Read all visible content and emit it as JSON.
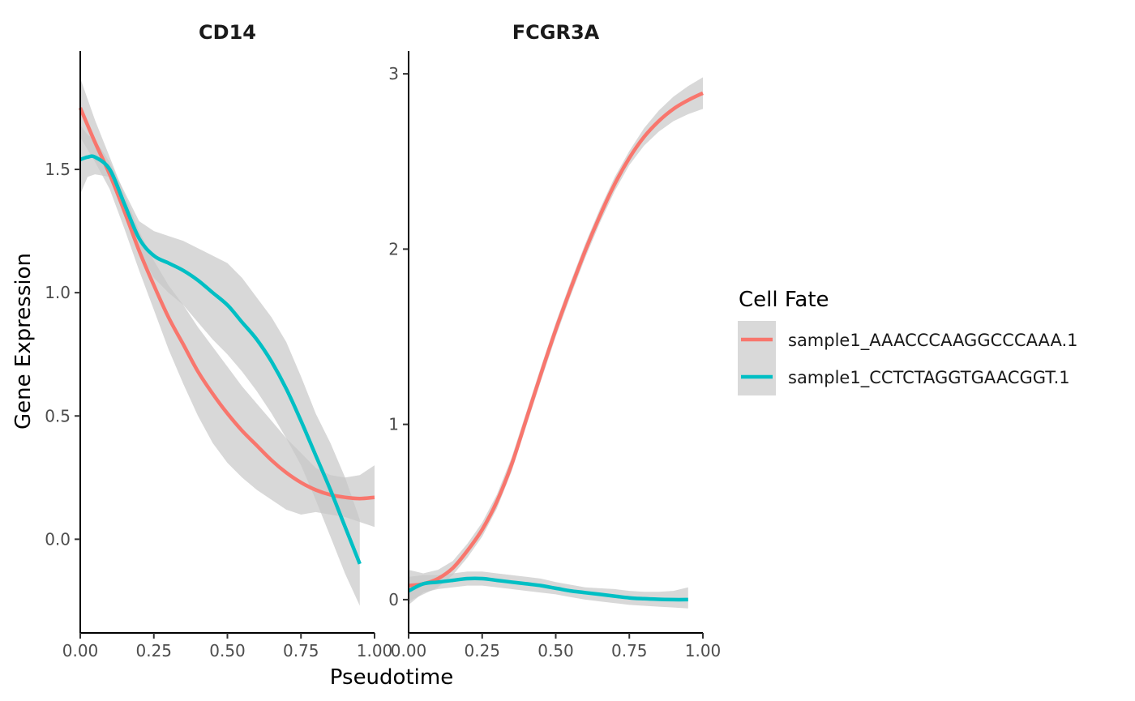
{
  "colors": {
    "series1": "#F8766D",
    "series2": "#00BFC4",
    "ribbon": "#c8c8c8",
    "axis": "#000000"
  },
  "chart_data": {
    "type": "line",
    "x_label": "Pseudotime",
    "y_label": "Gene Expression",
    "legend": {
      "title": "Cell Fate",
      "position": "right",
      "entries": [
        "sample1_AAACCCAAGGCCCAAA.1",
        "sample1_CCTCTAGGTGAACGGT.1"
      ]
    },
    "grid": false,
    "panels": [
      {
        "title": "CD14",
        "xlim": [
          0,
          1
        ],
        "ylim": [
          -0.38,
          1.98
        ],
        "x_ticks": [
          0,
          0.25,
          0.5,
          0.75,
          1
        ],
        "x_tick_labels": [
          "0.00",
          "0.25",
          "0.50",
          "0.75",
          "1.00"
        ],
        "y_ticks": [
          0,
          0.5,
          1,
          1.5
        ],
        "y_tick_labels": [
          "0.0",
          "0.5",
          "1.0",
          "1.5"
        ],
        "series": [
          {
            "x": [
              0,
              0.05,
              0.1,
              0.15,
              0.2,
              0.25,
              0.3,
              0.35,
              0.4,
              0.45,
              0.5,
              0.55,
              0.6,
              0.65,
              0.7,
              0.75,
              0.8,
              0.85,
              0.9,
              0.95,
              1.0
            ],
            "y": [
              1.75,
              1.61,
              1.48,
              1.33,
              1.17,
              1.03,
              0.9,
              0.79,
              0.68,
              0.59,
              0.51,
              0.44,
              0.38,
              0.32,
              0.27,
              0.23,
              0.2,
              0.18,
              0.17,
              0.165,
              0.17
            ],
            "lower": [
              1.63,
              1.53,
              1.42,
              1.26,
              1.09,
              0.93,
              0.77,
              0.63,
              0.5,
              0.39,
              0.31,
              0.25,
              0.2,
              0.16,
              0.12,
              0.1,
              0.11,
              0.1,
              0.09,
              0.07,
              0.05
            ],
            "upper": [
              1.87,
              1.7,
              1.55,
              1.4,
              1.25,
              1.13,
              1.03,
              0.95,
              0.86,
              0.78,
              0.7,
              0.62,
              0.55,
              0.48,
              0.41,
              0.35,
              0.29,
              0.26,
              0.25,
              0.26,
              0.3
            ]
          },
          {
            "x": [
              0,
              0.025,
              0.05,
              0.1,
              0.15,
              0.2,
              0.25,
              0.3,
              0.35,
              0.4,
              0.45,
              0.5,
              0.55,
              0.6,
              0.65,
              0.7,
              0.75,
              0.8,
              0.85,
              0.9,
              0.95
            ],
            "y": [
              1.54,
              1.55,
              1.55,
              1.5,
              1.36,
              1.22,
              1.15,
              1.12,
              1.09,
              1.05,
              1.0,
              0.95,
              0.88,
              0.81,
              0.72,
              0.61,
              0.48,
              0.34,
              0.2,
              0.05,
              -0.1
            ],
            "lower": [
              1.4,
              1.47,
              1.48,
              1.47,
              1.31,
              1.17,
              1.06,
              1.0,
              0.95,
              0.88,
              0.81,
              0.75,
              0.68,
              0.6,
              0.51,
              0.41,
              0.3,
              0.16,
              0.01,
              -0.14,
              -0.27
            ],
            "upper": [
              1.68,
              1.64,
              1.62,
              1.53,
              1.41,
              1.29,
              1.25,
              1.23,
              1.21,
              1.18,
              1.15,
              1.12,
              1.06,
              0.98,
              0.9,
              0.8,
              0.66,
              0.51,
              0.39,
              0.25,
              0.08
            ]
          }
        ]
      },
      {
        "title": "FCGR3A",
        "xlim": [
          0,
          1
        ],
        "ylim": [
          -0.19,
          3.13
        ],
        "x_ticks": [
          0,
          0.25,
          0.5,
          0.75,
          1
        ],
        "x_tick_labels": [
          "0.00",
          "0.25",
          "0.50",
          "0.75",
          "1.00"
        ],
        "y_ticks": [
          0,
          1,
          2,
          3
        ],
        "y_tick_labels": [
          "0",
          "1",
          "2",
          "3"
        ],
        "series": [
          {
            "x": [
              0,
              0.05,
              0.1,
              0.15,
              0.2,
              0.25,
              0.3,
              0.35,
              0.4,
              0.45,
              0.5,
              0.55,
              0.6,
              0.65,
              0.7,
              0.75,
              0.8,
              0.85,
              0.9,
              0.95,
              1.0
            ],
            "y": [
              0.08,
              0.09,
              0.12,
              0.18,
              0.28,
              0.4,
              0.56,
              0.77,
              1.03,
              1.29,
              1.54,
              1.77,
              1.99,
              2.19,
              2.37,
              2.52,
              2.64,
              2.73,
              2.8,
              2.85,
              2.89
            ],
            "lower": [
              -0.01,
              0.03,
              0.07,
              0.14,
              0.24,
              0.36,
              0.52,
              0.73,
              0.99,
              1.25,
              1.5,
              1.73,
              1.95,
              2.15,
              2.33,
              2.48,
              2.59,
              2.67,
              2.73,
              2.77,
              2.8
            ],
            "upper": [
              0.17,
              0.15,
              0.17,
              0.22,
              0.32,
              0.44,
              0.6,
              0.81,
              1.07,
              1.33,
              1.58,
              1.81,
              2.03,
              2.23,
              2.41,
              2.56,
              2.69,
              2.79,
              2.87,
              2.93,
              2.98
            ]
          },
          {
            "x": [
              0,
              0.05,
              0.1,
              0.15,
              0.2,
              0.25,
              0.3,
              0.35,
              0.4,
              0.45,
              0.5,
              0.55,
              0.6,
              0.65,
              0.7,
              0.75,
              0.8,
              0.85,
              0.9,
              0.95
            ],
            "y": [
              0.05,
              0.09,
              0.1,
              0.11,
              0.12,
              0.12,
              0.11,
              0.1,
              0.09,
              0.08,
              0.065,
              0.05,
              0.04,
              0.03,
              0.02,
              0.01,
              0.005,
              0.002,
              0.0,
              0.0
            ],
            "lower": [
              -0.03,
              0.04,
              0.06,
              0.07,
              0.08,
              0.08,
              0.07,
              0.06,
              0.05,
              0.04,
              0.03,
              0.015,
              0.0,
              -0.01,
              -0.02,
              -0.03,
              -0.035,
              -0.04,
              -0.045,
              -0.05
            ],
            "upper": [
              0.13,
              0.14,
              0.14,
              0.15,
              0.16,
              0.16,
              0.15,
              0.14,
              0.13,
              0.12,
              0.1,
              0.085,
              0.07,
              0.065,
              0.06,
              0.05,
              0.045,
              0.045,
              0.05,
              0.07
            ]
          }
        ]
      }
    ]
  }
}
